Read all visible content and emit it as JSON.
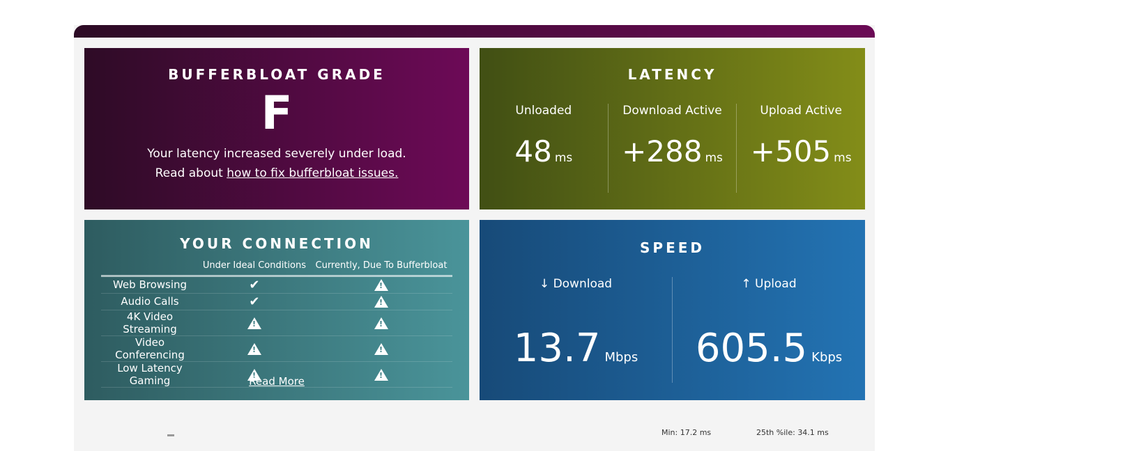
{
  "grade": {
    "title": "BUFFERBLOAT GRADE",
    "value": "F",
    "desc": "Your latency increased severely under load.",
    "read_prefix": "Read about",
    "link": "how to fix bufferbloat issues."
  },
  "latency": {
    "title": "LATENCY",
    "items": [
      {
        "label": "Unloaded",
        "value": "48",
        "unit": "ms"
      },
      {
        "label": "Download Active",
        "value": "+288",
        "unit": "ms"
      },
      {
        "label": "Upload Active",
        "value": "+505",
        "unit": "ms"
      }
    ]
  },
  "connection": {
    "title": "YOUR CONNECTION",
    "col1": "Under Ideal Conditions",
    "col2": "Currently, Due To Bufferbloat",
    "rows": [
      {
        "label": "Web Browsing",
        "ideal": "check",
        "current": "warning"
      },
      {
        "label": "Audio Calls",
        "ideal": "check",
        "current": "warning"
      },
      {
        "label": "4K Video Streaming",
        "ideal": "warning",
        "current": "warning"
      },
      {
        "label": "Video Conferencing",
        "ideal": "warning",
        "current": "warning"
      },
      {
        "label": "Low Latency Gaming",
        "ideal": "warning",
        "current": "warning"
      }
    ],
    "read_more": "Read More"
  },
  "speed": {
    "title": "SPEED",
    "download": {
      "label": "↓ Download",
      "value": "13.7",
      "unit": "Mbps"
    },
    "upload": {
      "label": "↑ Upload",
      "value": "605.5",
      "unit": "Kbps"
    }
  },
  "stats": {
    "min": "Min: 17.2 ms",
    "p25": "25th %ile: 34.1 ms"
  }
}
